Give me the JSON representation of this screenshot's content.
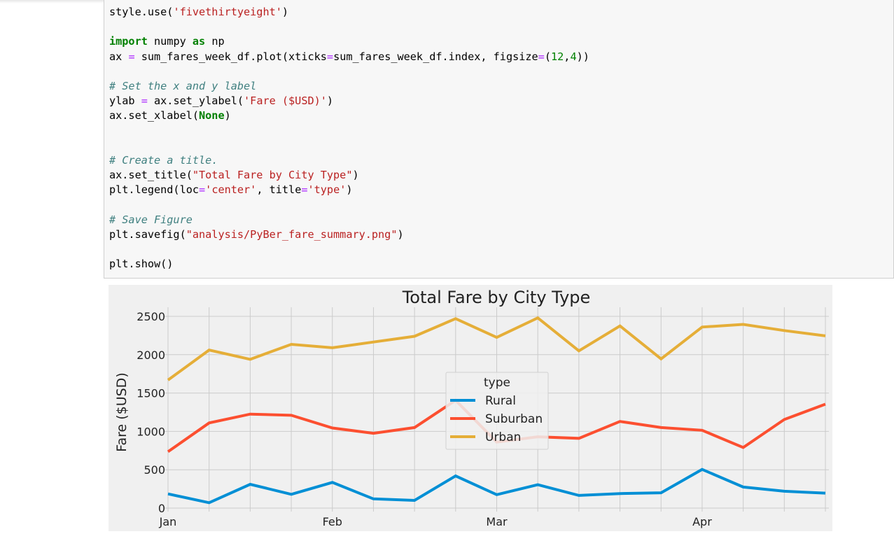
{
  "code_lines": [
    [
      [
        "",
        "style.use("
      ],
      [
        "str",
        "'fivethirtyeight'"
      ],
      [
        "",
        ")"
      ]
    ],
    [],
    [
      [
        "kw",
        "import"
      ],
      [
        "",
        " numpy "
      ],
      [
        "kw",
        "as"
      ],
      [
        "",
        " np"
      ]
    ],
    [
      [
        "",
        "ax "
      ],
      [
        "op",
        "="
      ],
      [
        "",
        " sum_fares_week_df.plot(xticks"
      ],
      [
        "op",
        "="
      ],
      [
        "",
        "sum_fares_week_df.index, figsize"
      ],
      [
        "op",
        "="
      ],
      [
        "",
        "("
      ],
      [
        "num",
        "12"
      ],
      [
        "",
        ","
      ],
      [
        "num",
        "4"
      ],
      [
        "",
        "))"
      ]
    ],
    [],
    [
      [
        "cmt",
        "# Set the x and y label"
      ]
    ],
    [
      [
        "",
        "ylab "
      ],
      [
        "op",
        "="
      ],
      [
        "",
        " ax.set_ylabel("
      ],
      [
        "str",
        "'Fare ($USD)'"
      ],
      [
        "",
        ")"
      ]
    ],
    [
      [
        "",
        "ax.set_xlabel("
      ],
      [
        "kw",
        "None"
      ],
      [
        "",
        ")"
      ]
    ],
    [],
    [],
    [
      [
        "cmt",
        "# Create a title."
      ]
    ],
    [
      [
        "",
        "ax.set_title("
      ],
      [
        "str",
        "\"Total Fare by City Type\""
      ],
      [
        "",
        ")"
      ]
    ],
    [
      [
        "",
        "plt.legend(loc"
      ],
      [
        "op",
        "="
      ],
      [
        "str",
        "'center'"
      ],
      [
        "",
        ", title"
      ],
      [
        "op",
        "="
      ],
      [
        "str",
        "'type'"
      ],
      [
        "",
        ")"
      ]
    ],
    [],
    [
      [
        "cmt",
        "# Save Figure"
      ]
    ],
    [
      [
        "",
        "plt.savefig("
      ],
      [
        "str",
        "\"analysis/PyBer_fare_summary.png\""
      ],
      [
        "",
        ")"
      ]
    ],
    [],
    [
      [
        "",
        "plt.show()"
      ]
    ]
  ],
  "chart_data": {
    "type": "line",
    "title": "Total Fare by City Type",
    "xlabel": "",
    "ylabel": "Fare ($USD)",
    "ylim": [
      0,
      2600
    ],
    "yticks": [
      0,
      500,
      1000,
      1500,
      2000,
      2500
    ],
    "x": [
      0,
      1,
      2,
      3,
      4,
      5,
      6,
      7,
      8,
      9,
      10,
      11,
      12,
      13,
      14,
      15,
      16
    ],
    "xticks": [
      {
        "x": 0,
        "label": "Jan"
      },
      {
        "x": 4,
        "label": "Feb"
      },
      {
        "x": 8,
        "label": "Mar"
      },
      {
        "x": 13,
        "label": "Apr"
      }
    ],
    "grid": true,
    "legend": {
      "title": "type",
      "placement": "center"
    },
    "series": [
      {
        "name": "Rural",
        "color": "#008fd5",
        "values": [
          185,
          70,
          310,
          180,
          335,
          120,
          100,
          420,
          175,
          305,
          165,
          190,
          200,
          505,
          275,
          220,
          195
        ]
      },
      {
        "name": "Suburban",
        "color": "#fc4f30",
        "values": [
          735,
          1110,
          1225,
          1210,
          1045,
          975,
          1050,
          1405,
          860,
          930,
          910,
          1130,
          1050,
          1015,
          790,
          1155,
          1355
        ]
      },
      {
        "name": "Urban",
        "color": "#e5ae38",
        "values": [
          1670,
          2060,
          1940,
          2135,
          2090,
          2165,
          2240,
          2470,
          2225,
          2480,
          2050,
          2375,
          1945,
          2360,
          2395,
          2315,
          2245
        ]
      }
    ]
  }
}
